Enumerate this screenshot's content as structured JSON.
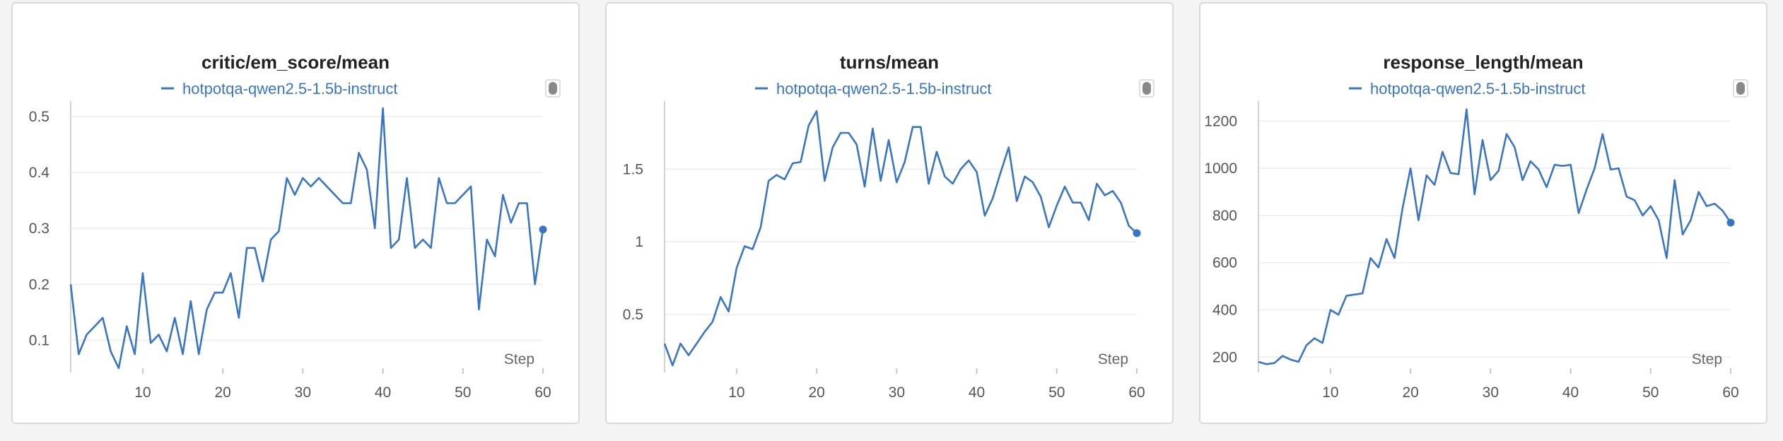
{
  "colors": {
    "series": "#3a75c4",
    "panel_bg": "#ffffff",
    "page_bg": "#f4f4f5"
  },
  "chart_data": [
    {
      "type": "line",
      "title": "critic/em_score/mean",
      "xlabel": "Step",
      "ylabel": "",
      "xlim": [
        1,
        60
      ],
      "ylim": [
        0.055,
        0.515
      ],
      "xticks": [
        10,
        20,
        30,
        40,
        50,
        60
      ],
      "yticks": [
        0.1,
        0.2,
        0.3,
        0.4,
        0.5
      ],
      "ytick_labels": [
        "0.1",
        "0.2",
        "0.3",
        "0.4",
        "0.5"
      ],
      "legend_icon": "settings-toggle-icon",
      "series": [
        {
          "name": "hotpotqa-qwen2.5-1.5b-instruct",
          "x": [
            1,
            2,
            3,
            4,
            5,
            6,
            7,
            8,
            9,
            10,
            11,
            12,
            13,
            14,
            15,
            16,
            17,
            18,
            19,
            20,
            21,
            22,
            23,
            24,
            25,
            26,
            27,
            28,
            29,
            30,
            31,
            32,
            33,
            34,
            35,
            36,
            37,
            38,
            39,
            40,
            41,
            42,
            43,
            44,
            45,
            46,
            47,
            48,
            49,
            50,
            51,
            52,
            53,
            54,
            55,
            56,
            57,
            58,
            59,
            60
          ],
          "values": [
            0.2,
            0.075,
            0.11,
            0.125,
            0.14,
            0.08,
            0.05,
            0.125,
            0.075,
            0.22,
            0.095,
            0.11,
            0.08,
            0.14,
            0.075,
            0.17,
            0.075,
            0.155,
            0.185,
            0.185,
            0.22,
            0.14,
            0.265,
            0.265,
            0.205,
            0.28,
            0.295,
            0.39,
            0.36,
            0.39,
            0.375,
            0.39,
            0.375,
            0.36,
            0.345,
            0.345,
            0.435,
            0.405,
            0.3,
            0.515,
            0.265,
            0.28,
            0.39,
            0.265,
            0.28,
            0.265,
            0.39,
            0.345,
            0.345,
            0.36,
            0.375,
            0.155,
            0.28,
            0.25,
            0.36,
            0.31,
            0.345,
            0.345,
            0.2,
            0.298
          ]
        }
      ]
    },
    {
      "type": "line",
      "title": "turns/mean",
      "xlabel": "Step",
      "ylabel": "",
      "xlim": [
        1,
        60
      ],
      "ylim": [
        0.15,
        1.92
      ],
      "xticks": [
        10,
        20,
        30,
        40,
        50,
        60
      ],
      "yticks": [
        0.5,
        1,
        1.5
      ],
      "ytick_labels": [
        "0.5",
        "1",
        "1.5"
      ],
      "legend_icon": "settings-toggle-icon",
      "series": [
        {
          "name": "hotpotqa-qwen2.5-1.5b-instruct",
          "x": [
            1,
            2,
            3,
            4,
            5,
            6,
            7,
            8,
            9,
            10,
            11,
            12,
            13,
            14,
            15,
            16,
            17,
            18,
            19,
            20,
            21,
            22,
            23,
            24,
            25,
            26,
            27,
            28,
            29,
            30,
            31,
            32,
            33,
            34,
            35,
            36,
            37,
            38,
            39,
            40,
            41,
            42,
            43,
            44,
            45,
            46,
            47,
            48,
            49,
            50,
            51,
            52,
            53,
            54,
            55,
            56,
            57,
            58,
            59,
            60
          ],
          "values": [
            0.3,
            0.15,
            0.3,
            0.22,
            0.3,
            0.38,
            0.45,
            0.62,
            0.52,
            0.82,
            0.97,
            0.95,
            1.1,
            1.42,
            1.46,
            1.43,
            1.54,
            1.55,
            1.8,
            1.9,
            1.42,
            1.65,
            1.75,
            1.75,
            1.67,
            1.38,
            1.78,
            1.42,
            1.7,
            1.41,
            1.55,
            1.79,
            1.79,
            1.4,
            1.62,
            1.45,
            1.4,
            1.5,
            1.56,
            1.48,
            1.18,
            1.3,
            1.48,
            1.65,
            1.28,
            1.45,
            1.41,
            1.31,
            1.1,
            1.25,
            1.38,
            1.27,
            1.27,
            1.15,
            1.4,
            1.32,
            1.35,
            1.27,
            1.11,
            1.06
          ]
        }
      ]
    },
    {
      "type": "line",
      "title": "response_length/mean",
      "xlabel": "Step",
      "ylabel": "",
      "xlim": [
        1,
        60
      ],
      "ylim": [
        165,
        1255
      ],
      "xticks": [
        10,
        20,
        30,
        40,
        50,
        60
      ],
      "yticks": [
        200,
        400,
        600,
        800,
        1000,
        1200
      ],
      "ytick_labels": [
        "200",
        "400",
        "600",
        "800",
        "1000",
        "1200"
      ],
      "legend_icon": "settings-toggle-icon",
      "series": [
        {
          "name": "hotpotqa-qwen2.5-1.5b-instruct",
          "x": [
            1,
            2,
            3,
            4,
            5,
            6,
            7,
            8,
            9,
            10,
            11,
            12,
            13,
            14,
            15,
            16,
            17,
            18,
            19,
            20,
            21,
            22,
            23,
            24,
            25,
            26,
            27,
            28,
            29,
            30,
            31,
            32,
            33,
            34,
            35,
            36,
            37,
            38,
            39,
            40,
            41,
            42,
            43,
            44,
            45,
            46,
            47,
            48,
            49,
            50,
            51,
            52,
            53,
            54,
            55,
            56,
            57,
            58,
            59,
            60
          ],
          "values": [
            180,
            170,
            175,
            205,
            190,
            180,
            250,
            280,
            260,
            400,
            380,
            460,
            465,
            470,
            620,
            580,
            700,
            620,
            830,
            1000,
            780,
            970,
            930,
            1070,
            980,
            975,
            1250,
            890,
            1120,
            950,
            990,
            1145,
            1090,
            950,
            1030,
            995,
            920,
            1015,
            1010,
            1015,
            810,
            910,
            1000,
            1145,
            995,
            1000,
            880,
            865,
            800,
            840,
            780,
            620,
            950,
            720,
            780,
            900,
            840,
            850,
            820,
            770
          ]
        }
      ]
    }
  ]
}
